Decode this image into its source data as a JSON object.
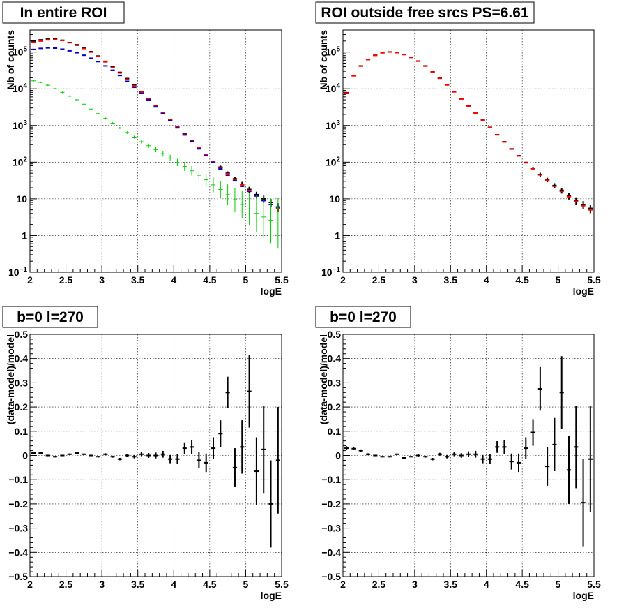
{
  "chart_data": [
    {
      "panel": "top-left",
      "type": "scatter",
      "title": "In entire ROI",
      "xlabel": "logE",
      "ylabel": "Nb of counts",
      "xlim": [
        2,
        5.5
      ],
      "ylim": [
        0.1,
        400000
      ],
      "y_scale": "log",
      "grid": true,
      "x_ticks": [
        "2",
        "2.5",
        "3",
        "3.5",
        "4",
        "4.5",
        "5",
        "5.5"
      ],
      "y_ticks": [
        {
          "value": 0.1,
          "base": "10",
          "exp": "−1"
        },
        {
          "value": 1,
          "base": "1",
          "exp": ""
        },
        {
          "value": 10,
          "base": "10",
          "exp": ""
        },
        {
          "value": 100,
          "base": "10",
          "exp": "2"
        },
        {
          "value": 1000,
          "base": "10",
          "exp": "3"
        },
        {
          "value": 10000,
          "base": "10",
          "exp": "4"
        },
        {
          "value": 100000,
          "base": "10",
          "exp": "5"
        }
      ],
      "bin_width": 0.1,
      "x": [
        2.05,
        2.15,
        2.25,
        2.35,
        2.45,
        2.55,
        2.65,
        2.75,
        2.85,
        2.95,
        3.05,
        3.15,
        3.25,
        3.35,
        3.45,
        3.55,
        3.65,
        3.75,
        3.85,
        3.95,
        4.05,
        4.15,
        4.25,
        4.35,
        4.45,
        4.55,
        4.65,
        4.75,
        4.85,
        4.95,
        5.05,
        5.15,
        5.25,
        5.35,
        5.45
      ],
      "series": [
        {
          "color": "#000000",
          "values": [
            200000,
            215000,
            230000,
            228000,
            210000,
            182000,
            158000,
            130000,
            103000,
            78000,
            56000,
            40000,
            28000,
            19000,
            12700,
            8300,
            5400,
            3500,
            2250,
            1450,
            930,
            590,
            380,
            250,
            160,
            105,
            73,
            50,
            35,
            25,
            18,
            13,
            10,
            8,
            6
          ],
          "err": [
            0,
            0,
            0,
            0,
            0,
            0,
            0,
            0,
            0,
            0,
            0,
            0,
            0,
            0,
            0,
            0,
            0,
            0,
            0,
            0,
            0,
            0,
            0,
            0,
            0,
            0,
            0,
            0,
            0,
            0,
            0,
            0,
            0,
            0,
            0
          ],
          "x_override": [
            2.05,
            2.15,
            2.25,
            2.35,
            2.45,
            2.55,
            2.65,
            2.75,
            2.85,
            2.95,
            3.05,
            3.15,
            3.25,
            3.35,
            3.45,
            3.55,
            3.65,
            3.75,
            3.85,
            3.95,
            4.05,
            4.15,
            4.25,
            4.35,
            4.45,
            4.55,
            4.65,
            4.75,
            4.85,
            4.95,
            5.05,
            5.15,
            5.25,
            5.35,
            5.45
          ]
        },
        {
          "color": "#ff0000",
          "values": [
            185000,
            200000,
            215000,
            220000,
            207000,
            180000,
            153000,
            125000,
            100000,
            76000,
            54000,
            38000,
            27000,
            18000,
            12000,
            8000,
            5200,
            3350,
            2200,
            1400,
            900,
            570,
            370,
            245,
            158,
            102,
            70,
            48,
            34,
            24,
            17,
            12,
            9,
            7,
            5.5
          ],
          "err": [
            0,
            0,
            0,
            0,
            0,
            0,
            0,
            0,
            0,
            0,
            0,
            0,
            0,
            0,
            0,
            0,
            0,
            0,
            0,
            0,
            0,
            0,
            0,
            0,
            0,
            0,
            0,
            0,
            0,
            0,
            0,
            0,
            0,
            0,
            0
          ]
        },
        {
          "color": "#0000cc",
          "values": [
            118000,
            126000,
            130000,
            128000,
            120000,
            108000,
            96000,
            82000,
            68000,
            55000,
            42000,
            32000,
            23000,
            16000,
            11000,
            7500,
            5000,
            3200,
            2100,
            1350,
            860,
            550,
            360,
            230,
            150,
            98,
            65,
            44,
            31,
            22,
            16,
            12,
            9,
            7,
            6
          ],
          "err": [
            0,
            0,
            0,
            0,
            0,
            0,
            0,
            0,
            0,
            0,
            0,
            0,
            0,
            0,
            0,
            0,
            0,
            0,
            0,
            0,
            0,
            0,
            0,
            0,
            0,
            0,
            0,
            0,
            0,
            0,
            0,
            0,
            0,
            0,
            0
          ]
        },
        {
          "color": "#00cc00",
          "values": [
            16500,
            15000,
            12500,
            10000,
            8000,
            6300,
            5000,
            3800,
            2800,
            2100,
            1550,
            1150,
            850,
            640,
            480,
            360,
            280,
            220,
            170,
            130,
            98,
            76,
            58,
            44,
            33,
            24,
            18,
            13,
            9.5,
            7,
            5.3,
            4,
            3.2,
            2.6,
            2.2
          ],
          "err": [
            0.02,
            0.02,
            0.02,
            0.02,
            0.02,
            0.02,
            0.02,
            0.02,
            0.02,
            0.02,
            0.03,
            0.03,
            0.03,
            0.04,
            0.04,
            0.05,
            0.06,
            0.07,
            0.08,
            0.09,
            0.1,
            0.12,
            0.13,
            0.15,
            0.17,
            0.2,
            0.24,
            0.28,
            0.32,
            0.38,
            0.43,
            0.5,
            0.56,
            0.62,
            0.68
          ]
        }
      ]
    },
    {
      "panel": "top-right",
      "type": "scatter",
      "title": "ROI outside free srcs PS=6.61",
      "xlabel": "logE",
      "ylabel": "Nb of counts",
      "xlim": [
        2,
        5.5
      ],
      "ylim": [
        0.1,
        400000
      ],
      "y_scale": "log",
      "grid": true,
      "x_ticks": [
        "2",
        "2.5",
        "3",
        "3.5",
        "4",
        "4.5",
        "5",
        "5.5"
      ],
      "y_ticks": [
        {
          "value": 0.1,
          "base": "10",
          "exp": "−1"
        },
        {
          "value": 1,
          "base": "1",
          "exp": ""
        },
        {
          "value": 10,
          "base": "10",
          "exp": ""
        },
        {
          "value": 100,
          "base": "10",
          "exp": "2"
        },
        {
          "value": 1000,
          "base": "10",
          "exp": "3"
        },
        {
          "value": 10000,
          "base": "10",
          "exp": "4"
        },
        {
          "value": 100000,
          "base": "10",
          "exp": "5"
        }
      ],
      "bin_width": 0.1,
      "x": [
        2.05,
        2.15,
        2.25,
        2.35,
        2.45,
        2.55,
        2.65,
        2.75,
        2.85,
        2.95,
        3.05,
        3.15,
        3.25,
        3.35,
        3.45,
        3.55,
        3.65,
        3.75,
        3.85,
        3.95,
        4.05,
        4.15,
        4.25,
        4.35,
        4.45,
        4.55,
        4.65,
        4.75,
        4.85,
        4.95,
        5.05,
        5.15,
        5.25,
        5.35,
        5.45
      ],
      "series": [
        {
          "color": "#000000",
          "values": [
            7800,
            23000,
            42000,
            63000,
            82000,
            96000,
            101000,
            97000,
            86000,
            72000,
            57000,
            42000,
            29000,
            19500,
            12800,
            8300,
            5300,
            3400,
            2200,
            1400,
            890,
            560,
            360,
            230,
            150,
            98,
            68,
            46,
            33,
            23,
            17,
            12,
            9,
            7,
            5.5
          ],
          "err": [
            0,
            0,
            0,
            0,
            0,
            0,
            0,
            0,
            0,
            0,
            0,
            0,
            0,
            0,
            0,
            0,
            0,
            0,
            0,
            0,
            0,
            0,
            0,
            0,
            0,
            0,
            0,
            0,
            0,
            0,
            0,
            0,
            0,
            0,
            0
          ]
        },
        {
          "color": "#ff0000",
          "values": [
            7600,
            22500,
            41500,
            62500,
            81500,
            95500,
            100500,
            96500,
            85500,
            71500,
            56500,
            41500,
            28700,
            19300,
            12700,
            8200,
            5250,
            3350,
            2180,
            1390,
            880,
            555,
            355,
            227,
            148,
            96,
            66,
            45,
            32,
            22,
            16,
            11.5,
            8.5,
            6.5,
            5
          ],
          "err": [
            0,
            0,
            0,
            0,
            0,
            0,
            0,
            0,
            0,
            0,
            0,
            0,
            0,
            0,
            0,
            0,
            0,
            0,
            0,
            0,
            0,
            0,
            0,
            0,
            0,
            0,
            0,
            0,
            0,
            0,
            0,
            0,
            0,
            0,
            0
          ]
        }
      ]
    },
    {
      "panel": "bottom-left",
      "type": "scatter",
      "title": "b=0 l=270",
      "xlabel": "logE",
      "ylabel": "(data-model)/model",
      "xlim": [
        2,
        5.5
      ],
      "ylim": [
        -0.5,
        0.5
      ],
      "grid": true,
      "x_ticks": [
        "2",
        "2.5",
        "3",
        "3.5",
        "4",
        "4.5",
        "5",
        "5.5"
      ],
      "y_ticks": [
        "−0.5",
        "−0.4",
        "−0.3",
        "−0.2",
        "−0.1",
        "0",
        "0.1",
        "0.2",
        "0.3",
        "0.4",
        "0.5"
      ],
      "bin_width": 0.1,
      "x": [
        2.05,
        2.15,
        2.25,
        2.35,
        2.45,
        2.55,
        2.65,
        2.75,
        2.85,
        2.95,
        3.05,
        3.15,
        3.25,
        3.35,
        3.45,
        3.55,
        3.65,
        3.75,
        3.85,
        3.95,
        4.05,
        4.15,
        4.25,
        4.35,
        4.45,
        4.55,
        4.65,
        4.75,
        4.85,
        4.95,
        5.05,
        5.15,
        5.25,
        5.35,
        5.45
      ],
      "series": [
        {
          "color": "#000000",
          "values": [
            0.01,
            0.01,
            0.0,
            -0.005,
            0.0,
            0.005,
            0.01,
            0.005,
            0.0,
            -0.005,
            0.005,
            -0.005,
            -0.015,
            0.0,
            -0.005,
            0.005,
            0.0,
            0.0,
            0.005,
            -0.015,
            -0.015,
            0.03,
            0.035,
            -0.02,
            -0.03,
            0.03,
            0.09,
            0.26,
            -0.05,
            0.035,
            0.265,
            -0.065,
            0.025,
            -0.2,
            -0.02
          ],
          "err": [
            0.003,
            0.003,
            0.003,
            0.003,
            0.003,
            0.003,
            0.003,
            0.003,
            0.003,
            0.003,
            0.004,
            0.004,
            0.005,
            0.006,
            0.007,
            0.008,
            0.01,
            0.012,
            0.014,
            0.017,
            0.02,
            0.024,
            0.028,
            0.033,
            0.038,
            0.045,
            0.055,
            0.065,
            0.08,
            0.11,
            0.15,
            0.14,
            0.18,
            0.18,
            0.22
          ]
        }
      ]
    },
    {
      "panel": "bottom-right",
      "type": "scatter",
      "title": "b=0 l=270",
      "xlabel": "logE",
      "ylabel": "(data-model)/model",
      "xlim": [
        2,
        5.5
      ],
      "ylim": [
        -0.5,
        0.5
      ],
      "grid": true,
      "x_ticks": [
        "2",
        "2.5",
        "3",
        "3.5",
        "4",
        "4.5",
        "5",
        "5.5"
      ],
      "y_ticks": [
        "−0.5",
        "−0.4",
        "−0.3",
        "−0.2",
        "−0.1",
        "0",
        "0.1",
        "0.2",
        "0.3",
        "0.4",
        "0.5"
      ],
      "bin_width": 0.1,
      "x": [
        2.05,
        2.15,
        2.25,
        2.35,
        2.45,
        2.55,
        2.65,
        2.75,
        2.85,
        2.95,
        3.05,
        3.15,
        3.25,
        3.35,
        3.45,
        3.55,
        3.65,
        3.75,
        3.85,
        3.95,
        4.05,
        4.15,
        4.25,
        4.35,
        4.45,
        4.55,
        4.65,
        4.75,
        4.85,
        4.95,
        5.05,
        5.15,
        5.25,
        5.35,
        5.45
      ],
      "series": [
        {
          "color": "#000000",
          "values": [
            0.03,
            0.028,
            0.02,
            0.005,
            0.0,
            -0.005,
            -0.005,
            0.005,
            -0.01,
            -0.005,
            0.0,
            -0.005,
            -0.015,
            0.005,
            -0.005,
            0.005,
            0.0,
            0.005,
            0.005,
            -0.015,
            -0.015,
            0.035,
            0.035,
            -0.025,
            -0.03,
            0.03,
            0.095,
            0.275,
            -0.045,
            0.045,
            0.26,
            -0.06,
            0.035,
            -0.195,
            -0.015
          ],
          "err": [
            0.008,
            0.006,
            0.005,
            0.004,
            0.003,
            0.003,
            0.003,
            0.003,
            0.003,
            0.003,
            0.004,
            0.004,
            0.005,
            0.006,
            0.007,
            0.008,
            0.01,
            0.012,
            0.014,
            0.017,
            0.02,
            0.024,
            0.028,
            0.033,
            0.038,
            0.045,
            0.055,
            0.09,
            0.08,
            0.11,
            0.15,
            0.14,
            0.17,
            0.18,
            0.22
          ]
        }
      ]
    }
  ]
}
